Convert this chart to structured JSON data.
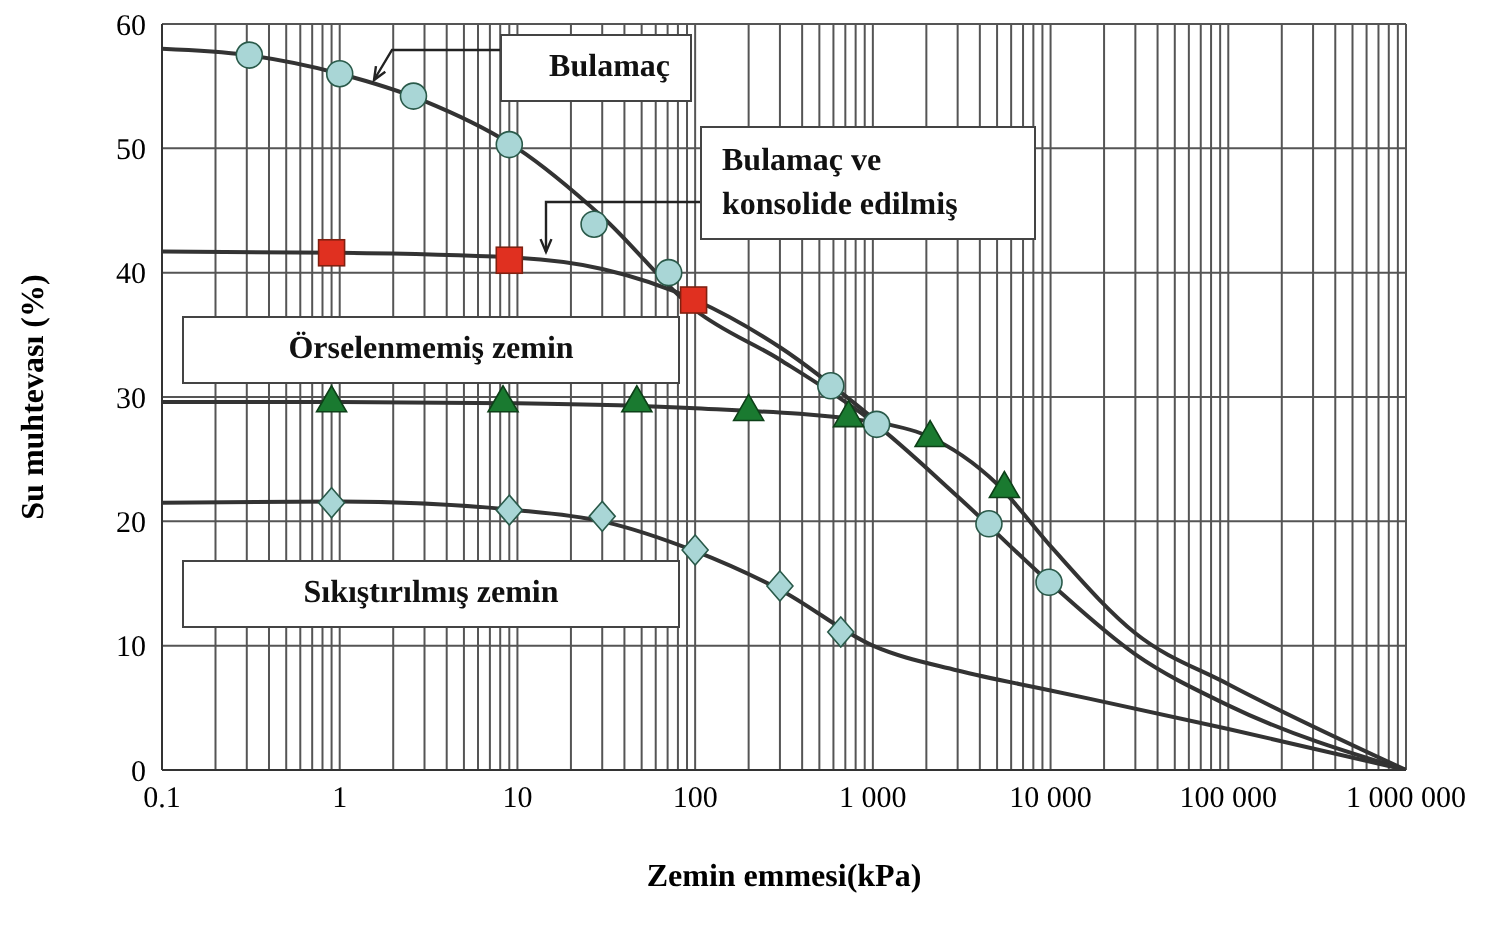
{
  "chart_data": {
    "type": "scatter",
    "xlabel": "Zemin emmesi(kPa)",
    "ylabel": "Su muhtevası (%)",
    "log": "x",
    "grid": true,
    "xlim": [
      0.1,
      1000000
    ],
    "xticks": [
      0.1,
      1,
      10,
      100,
      {
        "value": 1000,
        "label": "1 000"
      },
      {
        "value": 10000,
        "label": "10 000"
      },
      {
        "value": 100000,
        "label": "100 000"
      },
      {
        "value": 1000000,
        "label": "1 000 000"
      }
    ],
    "ylim": [
      0,
      60
    ],
    "yticks": [
      0,
      10,
      20,
      30,
      40,
      50,
      60
    ],
    "series": [
      {
        "name": "Bulamaç",
        "marker": "circle",
        "color": "#a9d6d6",
        "x": [
          0.31,
          1,
          2.6,
          9,
          27,
          71,
          580,
          1050,
          4500,
          9800
        ],
        "values": [
          57.5,
          56,
          54.2,
          50.3,
          43.9,
          40,
          30.9,
          27.8,
          19.8,
          15.1
        ]
      },
      {
        "name": "Bulamaç ve konsolide edilmiş",
        "marker": "square",
        "color": "#e03020",
        "x": [
          0.9,
          9,
          98
        ],
        "values": [
          41.6,
          41,
          37.8
        ]
      },
      {
        "name": "Örselenmemiş zemin",
        "marker": "triangle",
        "color": "#1a7a30",
        "x": [
          0.9,
          8.3,
          47,
          200,
          730,
          2100,
          5500
        ],
        "values": [
          29.7,
          29.7,
          29.7,
          29,
          28.5,
          26.9,
          22.8
        ]
      },
      {
        "name": "Sıkıştırılmış zemin",
        "marker": "diamond",
        "color": "#a9d6d6",
        "x": [
          0.9,
          9,
          30,
          100,
          300,
          660
        ],
        "values": [
          21.5,
          20.9,
          20.4,
          17.7,
          14.8,
          11.1
        ]
      },
      {
        "type": "line",
        "marker": "none",
        "line_style": "solid",
        "color": "#333333",
        "x": [
          0.1,
          0.3,
          1,
          3,
          10,
          30,
          100,
          300,
          1000,
          3000,
          10000,
          30000,
          100000,
          1000000
        ],
        "values": [
          58,
          57.5,
          56,
          53.8,
          50,
          44.5,
          37,
          33,
          28,
          22,
          15,
          9.3,
          5.2,
          0
        ]
      },
      {
        "type": "line",
        "marker": "none",
        "line_style": "solid",
        "color": "#333333",
        "x": [
          0.1,
          1,
          10,
          30,
          100,
          300,
          1000
        ],
        "values": [
          41.7,
          41.6,
          41.2,
          40.3,
          37.8,
          34,
          28.3
        ]
      },
      {
        "type": "line",
        "marker": "none",
        "line_style": "solid",
        "color": "#333333",
        "x": [
          0.1,
          1,
          10,
          100,
          1000,
          2000,
          5000,
          10000,
          30000,
          100000,
          1000000
        ],
        "values": [
          29.6,
          29.6,
          29.5,
          29.1,
          28,
          26.9,
          23,
          18,
          11,
          6.9,
          0
        ]
      },
      {
        "type": "line",
        "marker": "none",
        "line_style": "solid",
        "color": "#333333",
        "x": [
          0.1,
          1,
          10,
          30,
          100,
          300,
          1000,
          3000,
          10000,
          100000,
          1000000
        ],
        "values": [
          21.5,
          21.6,
          20.9,
          20,
          17.6,
          14.5,
          10,
          8,
          6.4,
          3.3,
          0
        ]
      }
    ]
  }
}
